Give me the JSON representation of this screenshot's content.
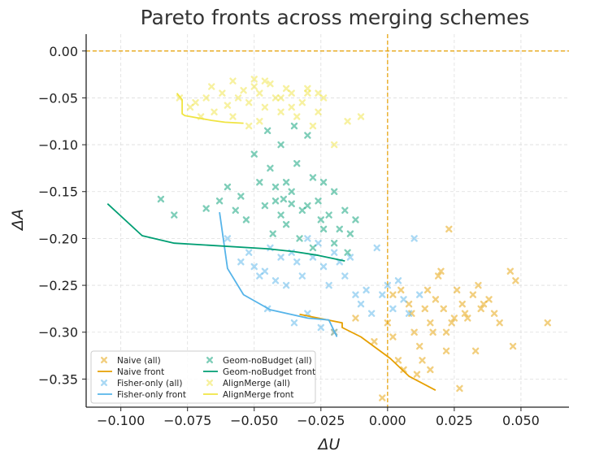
{
  "chart_data": {
    "type": "scatter",
    "title": "Pareto fronts across merging schemes",
    "xlabel": "ΔU",
    "ylabel": "ΔA",
    "xlim": [
      -0.113,
      0.068
    ],
    "ylim": [
      -0.38,
      0.018
    ],
    "xticks": [
      -0.1,
      -0.075,
      -0.05,
      -0.025,
      0.0,
      0.025,
      0.05
    ],
    "xtick_labels": [
      "−0.100",
      "−0.075",
      "−0.050",
      "−0.025",
      "0.000",
      "0.025",
      "0.050"
    ],
    "yticks": [
      0.0,
      -0.05,
      -0.1,
      -0.15,
      -0.2,
      -0.25,
      -0.3,
      -0.35
    ],
    "ytick_labels": [
      "0.00",
      "−0.05",
      "−0.10",
      "−0.15",
      "−0.20",
      "−0.25",
      "−0.30",
      "−0.35"
    ],
    "grid": true,
    "reference_lines": {
      "x": 0.0,
      "y": 0.0,
      "color": "#E69F00"
    },
    "legend_position": "lower-left",
    "series": [
      {
        "name": "Naive (all)",
        "kind": "scatter",
        "color": "#E69F00",
        "points": [
          [
            -0.02,
            -0.3
          ],
          [
            -0.012,
            -0.285
          ],
          [
            -0.005,
            -0.31
          ],
          [
            0.0,
            -0.29
          ],
          [
            0.002,
            -0.305
          ],
          [
            0.004,
            -0.33
          ],
          [
            0.006,
            -0.34
          ],
          [
            0.002,
            -0.26
          ],
          [
            0.005,
            -0.255
          ],
          [
            0.008,
            -0.27
          ],
          [
            0.01,
            -0.3
          ],
          [
            0.012,
            -0.315
          ],
          [
            0.014,
            -0.275
          ],
          [
            0.015,
            -0.255
          ],
          [
            0.016,
            -0.29
          ],
          [
            0.018,
            -0.265
          ],
          [
            0.02,
            -0.235
          ],
          [
            0.019,
            -0.24
          ],
          [
            0.021,
            -0.275
          ],
          [
            0.022,
            -0.3
          ],
          [
            0.023,
            -0.19
          ],
          [
            0.024,
            -0.29
          ],
          [
            0.026,
            -0.255
          ],
          [
            0.028,
            -0.27
          ],
          [
            0.03,
            -0.285
          ],
          [
            0.032,
            -0.26
          ],
          [
            0.033,
            -0.32
          ],
          [
            0.034,
            -0.25
          ],
          [
            0.036,
            -0.27
          ],
          [
            0.038,
            -0.265
          ],
          [
            0.04,
            -0.28
          ],
          [
            0.042,
            -0.29
          ],
          [
            0.046,
            -0.235
          ],
          [
            0.048,
            -0.245
          ],
          [
            0.047,
            -0.315
          ],
          [
            0.06,
            -0.29
          ],
          [
            0.027,
            -0.36
          ],
          [
            0.016,
            -0.34
          ],
          [
            0.011,
            -0.345
          ],
          [
            -0.002,
            -0.37
          ],
          [
            0.022,
            -0.32
          ],
          [
            0.013,
            -0.33
          ],
          [
            0.009,
            -0.28
          ],
          [
            0.017,
            -0.3
          ],
          [
            0.025,
            -0.285
          ],
          [
            0.029,
            -0.28
          ],
          [
            0.035,
            -0.275
          ]
        ]
      },
      {
        "name": "Naive front",
        "kind": "line",
        "color": "#E69F00",
        "points": [
          [
            -0.033,
            -0.281
          ],
          [
            -0.017,
            -0.29
          ],
          [
            -0.017,
            -0.295
          ],
          [
            -0.01,
            -0.305
          ],
          [
            0.001,
            -0.328
          ],
          [
            0.008,
            -0.347
          ],
          [
            0.018,
            -0.362
          ]
        ]
      },
      {
        "name": "Fisher-only (all)",
        "kind": "scatter",
        "color": "#56B4E9",
        "points": [
          [
            -0.06,
            -0.2
          ],
          [
            -0.055,
            -0.225
          ],
          [
            -0.052,
            -0.215
          ],
          [
            -0.05,
            -0.23
          ],
          [
            -0.048,
            -0.24
          ],
          [
            -0.046,
            -0.235
          ],
          [
            -0.044,
            -0.21
          ],
          [
            -0.042,
            -0.245
          ],
          [
            -0.04,
            -0.22
          ],
          [
            -0.038,
            -0.25
          ],
          [
            -0.036,
            -0.215
          ],
          [
            -0.034,
            -0.225
          ],
          [
            -0.032,
            -0.24
          ],
          [
            -0.03,
            -0.2
          ],
          [
            -0.028,
            -0.22
          ],
          [
            -0.026,
            -0.205
          ],
          [
            -0.024,
            -0.23
          ],
          [
            -0.022,
            -0.25
          ],
          [
            -0.02,
            -0.215
          ],
          [
            -0.018,
            -0.225
          ],
          [
            -0.016,
            -0.24
          ],
          [
            -0.014,
            -0.22
          ],
          [
            -0.012,
            -0.26
          ],
          [
            -0.01,
            -0.27
          ],
          [
            -0.008,
            -0.255
          ],
          [
            -0.006,
            -0.28
          ],
          [
            -0.004,
            -0.21
          ],
          [
            -0.002,
            -0.26
          ],
          [
            0.0,
            -0.25
          ],
          [
            0.002,
            -0.275
          ],
          [
            0.004,
            -0.245
          ],
          [
            0.006,
            -0.265
          ],
          [
            0.008,
            -0.28
          ],
          [
            0.01,
            -0.2
          ],
          [
            0.012,
            -0.26
          ],
          [
            -0.045,
            -0.275
          ],
          [
            -0.035,
            -0.29
          ],
          [
            -0.03,
            -0.28
          ],
          [
            -0.025,
            -0.295
          ],
          [
            -0.02,
            -0.3
          ]
        ]
      },
      {
        "name": "Fisher-only front",
        "kind": "line",
        "color": "#56B4E9",
        "points": [
          [
            -0.063,
            -0.172
          ],
          [
            -0.06,
            -0.232
          ],
          [
            -0.054,
            -0.26
          ],
          [
            -0.044,
            -0.276
          ],
          [
            -0.03,
            -0.285
          ],
          [
            -0.022,
            -0.287
          ],
          [
            -0.019,
            -0.305
          ]
        ]
      },
      {
        "name": "Geom-noBudget (all)",
        "kind": "scatter",
        "color": "#009E73",
        "points": [
          [
            -0.085,
            -0.158
          ],
          [
            -0.08,
            -0.175
          ],
          [
            -0.068,
            -0.168
          ],
          [
            -0.063,
            -0.16
          ],
          [
            -0.06,
            -0.145
          ],
          [
            -0.057,
            -0.17
          ],
          [
            -0.055,
            -0.155
          ],
          [
            -0.053,
            -0.18
          ],
          [
            -0.05,
            -0.11
          ],
          [
            -0.048,
            -0.14
          ],
          [
            -0.046,
            -0.165
          ],
          [
            -0.044,
            -0.125
          ],
          [
            -0.042,
            -0.16
          ],
          [
            -0.04,
            -0.175
          ],
          [
            -0.038,
            -0.14
          ],
          [
            -0.036,
            -0.15
          ],
          [
            -0.034,
            -0.12
          ],
          [
            -0.032,
            -0.17
          ],
          [
            -0.03,
            -0.09
          ],
          [
            -0.028,
            -0.135
          ],
          [
            -0.026,
            -0.16
          ],
          [
            -0.024,
            -0.14
          ],
          [
            -0.022,
            -0.175
          ],
          [
            -0.02,
            -0.15
          ],
          [
            -0.018,
            -0.19
          ],
          [
            -0.016,
            -0.17
          ],
          [
            -0.014,
            -0.195
          ],
          [
            -0.012,
            -0.18
          ],
          [
            -0.045,
            -0.085
          ],
          [
            -0.04,
            -0.1
          ],
          [
            -0.035,
            -0.08
          ],
          [
            -0.043,
            -0.195
          ],
          [
            -0.038,
            -0.185
          ],
          [
            -0.033,
            -0.2
          ],
          [
            -0.028,
            -0.21
          ],
          [
            -0.024,
            -0.19
          ],
          [
            -0.02,
            -0.205
          ],
          [
            -0.015,
            -0.215
          ],
          [
            -0.042,
            -0.145
          ],
          [
            -0.039,
            -0.158
          ],
          [
            -0.036,
            -0.163
          ],
          [
            -0.03,
            -0.165
          ],
          [
            -0.025,
            -0.18
          ]
        ]
      },
      {
        "name": "Geom-noBudget front",
        "kind": "line",
        "color": "#009E73",
        "points": [
          [
            -0.105,
            -0.163
          ],
          [
            -0.092,
            -0.197
          ],
          [
            -0.08,
            -0.205
          ],
          [
            -0.045,
            -0.211
          ],
          [
            -0.035,
            -0.214
          ],
          [
            -0.026,
            -0.218
          ],
          [
            -0.016,
            -0.224
          ]
        ]
      },
      {
        "name": "AlignMerge (all)",
        "kind": "scatter",
        "color": "#F0E442",
        "points": [
          [
            -0.078,
            -0.05
          ],
          [
            -0.074,
            -0.06
          ],
          [
            -0.072,
            -0.055
          ],
          [
            -0.07,
            -0.07
          ],
          [
            -0.068,
            -0.05
          ],
          [
            -0.065,
            -0.065
          ],
          [
            -0.062,
            -0.045
          ],
          [
            -0.06,
            -0.058
          ],
          [
            -0.058,
            -0.07
          ],
          [
            -0.056,
            -0.05
          ],
          [
            -0.054,
            -0.042
          ],
          [
            -0.052,
            -0.055
          ],
          [
            -0.05,
            -0.038
          ],
          [
            -0.048,
            -0.045
          ],
          [
            -0.046,
            -0.06
          ],
          [
            -0.044,
            -0.035
          ],
          [
            -0.042,
            -0.05
          ],
          [
            -0.04,
            -0.065
          ],
          [
            -0.038,
            -0.04
          ],
          [
            -0.036,
            -0.06
          ],
          [
            -0.034,
            -0.07
          ],
          [
            -0.032,
            -0.055
          ],
          [
            -0.03,
            -0.045
          ],
          [
            -0.028,
            -0.08
          ],
          [
            -0.026,
            -0.065
          ],
          [
            -0.024,
            -0.05
          ],
          [
            -0.02,
            -0.1
          ],
          [
            -0.015,
            -0.075
          ],
          [
            -0.01,
            -0.07
          ],
          [
            -0.066,
            -0.038
          ],
          [
            -0.058,
            -0.032
          ],
          [
            -0.05,
            -0.03
          ],
          [
            -0.046,
            -0.032
          ],
          [
            -0.04,
            -0.05
          ],
          [
            -0.036,
            -0.045
          ],
          [
            -0.03,
            -0.04
          ],
          [
            -0.026,
            -0.045
          ],
          [
            -0.052,
            -0.08
          ],
          [
            -0.048,
            -0.075
          ]
        ]
      },
      {
        "name": "AlignMerge front",
        "kind": "line",
        "color": "#F0E442",
        "points": [
          [
            -0.079,
            -0.045
          ],
          [
            -0.077,
            -0.052
          ],
          [
            -0.077,
            -0.067
          ],
          [
            -0.076,
            -0.069
          ],
          [
            -0.066,
            -0.074
          ],
          [
            -0.061,
            -0.076
          ],
          [
            -0.054,
            -0.077
          ]
        ]
      }
    ]
  }
}
